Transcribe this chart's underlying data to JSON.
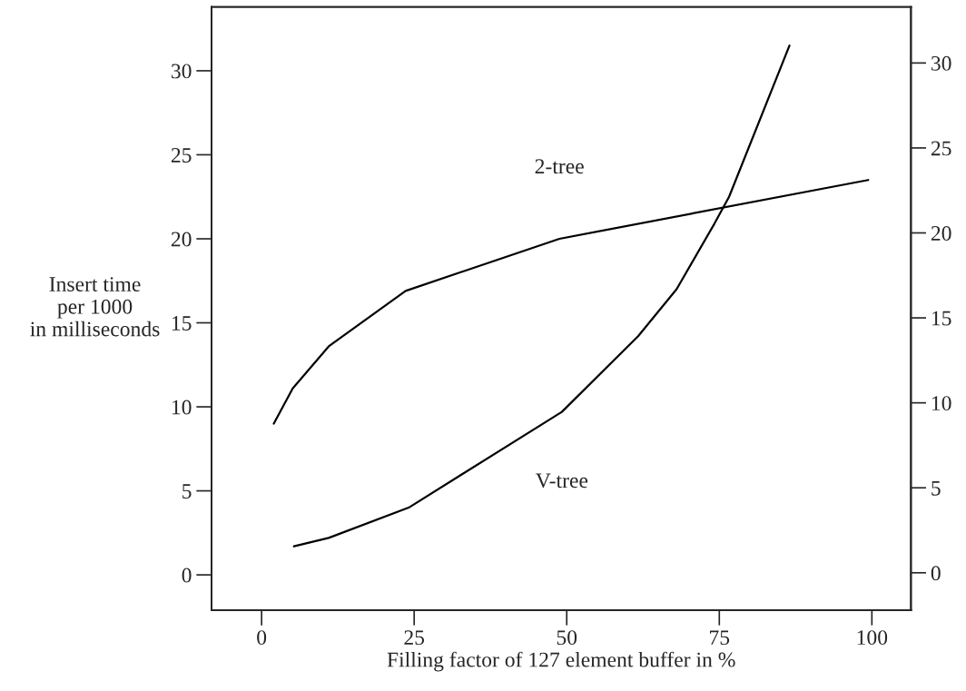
{
  "chart_data": {
    "type": "line",
    "xlabel": "Filling factor of 127 element buffer in %",
    "ylabel": "Insert time\nper 1000\nin milliseconds",
    "series": [
      {
        "name": "2-tree",
        "color": "#000000",
        "x": [
          2.0,
          5.1,
          11.0,
          23.6,
          48.8,
          99.4
        ],
        "values": [
          9.0,
          11.1,
          13.6,
          16.9,
          20.0,
          23.5
        ]
      },
      {
        "name": "V-tree",
        "color": "#000000",
        "x": [
          5.3,
          11.0,
          24.1,
          49.2,
          61.7,
          68.0,
          74.2,
          76.6,
          86.5
        ],
        "values": [
          1.7,
          2.2,
          4.0,
          9.7,
          14.2,
          17.0,
          20.9,
          22.5,
          31.5
        ]
      }
    ],
    "xlim": [
      -8.2,
      106.4
    ],
    "xticks": [
      0,
      25,
      50,
      75,
      100
    ],
    "ylim": [
      -2.1,
      33.8
    ],
    "yticks": [
      0,
      5,
      10,
      15,
      20,
      25,
      30
    ],
    "y2lim": [
      -2.2,
      33.3
    ],
    "y2ticks": [
      0,
      5,
      10,
      15,
      20,
      25,
      30
    ],
    "grid": false,
    "legend": false,
    "marker": "none",
    "line_style": "solid"
  }
}
